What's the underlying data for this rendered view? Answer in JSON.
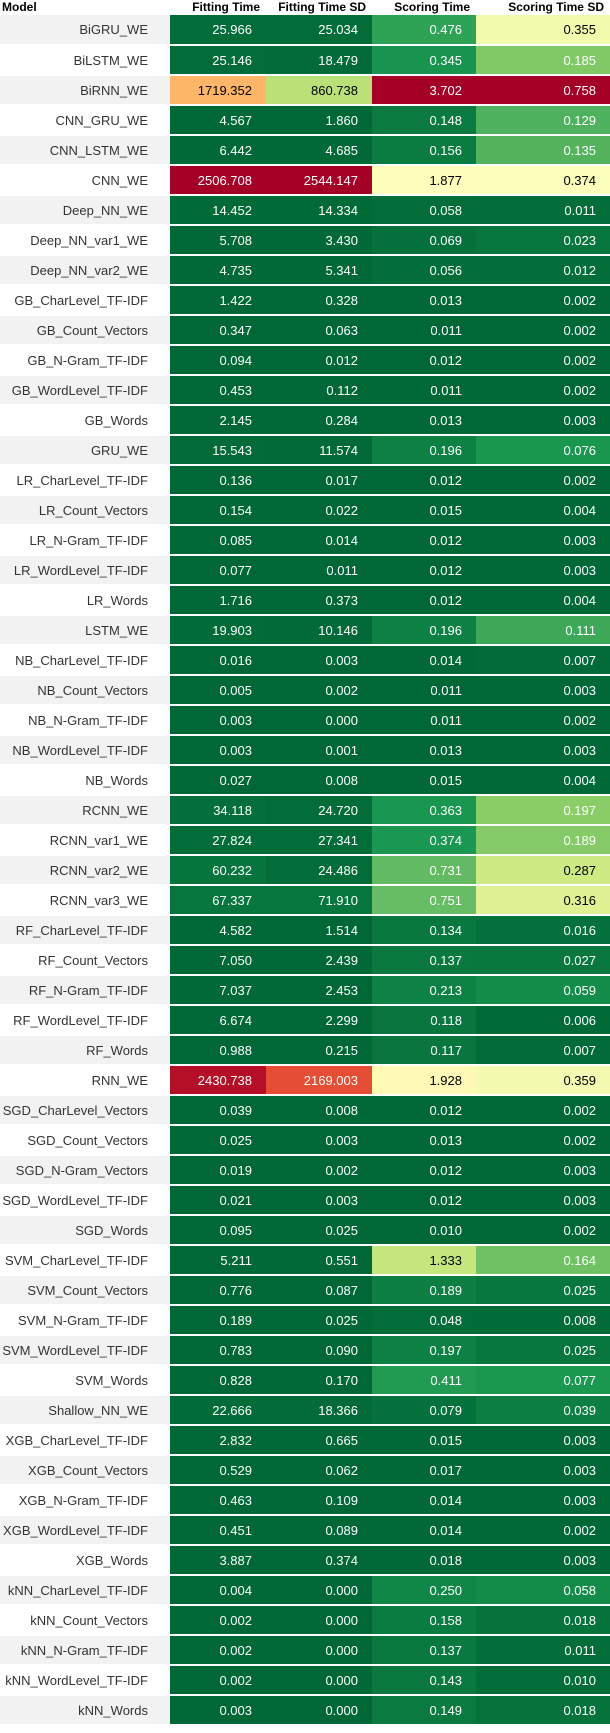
{
  "chart_data": {
    "type": "table",
    "columns": [
      "Model",
      "Fitting Time",
      "Fitting Time SD",
      "Scoring Time",
      "Scoring Time SD"
    ],
    "rows": [
      [
        "BiGRU_WE",
        "25.966",
        "25.034",
        "0.476",
        "0.355"
      ],
      [
        "BiLSTM_WE",
        "25.146",
        "18.479",
        "0.345",
        "0.185"
      ],
      [
        "BiRNN_WE",
        "1719.352",
        "860.738",
        "3.702",
        "0.758"
      ],
      [
        "CNN_GRU_WE",
        "4.567",
        "1.860",
        "0.148",
        "0.129"
      ],
      [
        "CNN_LSTM_WE",
        "6.442",
        "4.685",
        "0.156",
        "0.135"
      ],
      [
        "CNN_WE",
        "2506.708",
        "2544.147",
        "1.877",
        "0.374"
      ],
      [
        "Deep_NN_WE",
        "14.452",
        "14.334",
        "0.058",
        "0.011"
      ],
      [
        "Deep_NN_var1_WE",
        "5.708",
        "3.430",
        "0.069",
        "0.023"
      ],
      [
        "Deep_NN_var2_WE",
        "4.735",
        "5.341",
        "0.056",
        "0.012"
      ],
      [
        "GB_CharLevel_TF-IDF",
        "1.422",
        "0.328",
        "0.013",
        "0.002"
      ],
      [
        "GB_Count_Vectors",
        "0.347",
        "0.063",
        "0.011",
        "0.002"
      ],
      [
        "GB_N-Gram_TF-IDF",
        "0.094",
        "0.012",
        "0.012",
        "0.002"
      ],
      [
        "GB_WordLevel_TF-IDF",
        "0.453",
        "0.112",
        "0.011",
        "0.002"
      ],
      [
        "GB_Words",
        "2.145",
        "0.284",
        "0.013",
        "0.003"
      ],
      [
        "GRU_WE",
        "15.543",
        "11.574",
        "0.196",
        "0.076"
      ],
      [
        "LR_CharLevel_TF-IDF",
        "0.136",
        "0.017",
        "0.012",
        "0.002"
      ],
      [
        "LR_Count_Vectors",
        "0.154",
        "0.022",
        "0.015",
        "0.004"
      ],
      [
        "LR_N-Gram_TF-IDF",
        "0.085",
        "0.014",
        "0.012",
        "0.003"
      ],
      [
        "LR_WordLevel_TF-IDF",
        "0.077",
        "0.011",
        "0.012",
        "0.003"
      ],
      [
        "LR_Words",
        "1.716",
        "0.373",
        "0.012",
        "0.004"
      ],
      [
        "LSTM_WE",
        "19.903",
        "10.146",
        "0.196",
        "0.111"
      ],
      [
        "NB_CharLevel_TF-IDF",
        "0.016",
        "0.003",
        "0.014",
        "0.007"
      ],
      [
        "NB_Count_Vectors",
        "0.005",
        "0.002",
        "0.011",
        "0.003"
      ],
      [
        "NB_N-Gram_TF-IDF",
        "0.003",
        "0.000",
        "0.011",
        "0.002"
      ],
      [
        "NB_WordLevel_TF-IDF",
        "0.003",
        "0.001",
        "0.013",
        "0.003"
      ],
      [
        "NB_Words",
        "0.027",
        "0.008",
        "0.015",
        "0.004"
      ],
      [
        "RCNN_WE",
        "34.118",
        "24.720",
        "0.363",
        "0.197"
      ],
      [
        "RCNN_var1_WE",
        "27.824",
        "27.341",
        "0.374",
        "0.189"
      ],
      [
        "RCNN_var2_WE",
        "60.232",
        "24.486",
        "0.731",
        "0.287"
      ],
      [
        "RCNN_var3_WE",
        "67.337",
        "71.910",
        "0.751",
        "0.316"
      ],
      [
        "RF_CharLevel_TF-IDF",
        "4.582",
        "1.514",
        "0.134",
        "0.016"
      ],
      [
        "RF_Count_Vectors",
        "7.050",
        "2.439",
        "0.137",
        "0.027"
      ],
      [
        "RF_N-Gram_TF-IDF",
        "7.037",
        "2.453",
        "0.213",
        "0.059"
      ],
      [
        "RF_WordLevel_TF-IDF",
        "6.674",
        "2.299",
        "0.118",
        "0.006"
      ],
      [
        "RF_Words",
        "0.988",
        "0.215",
        "0.117",
        "0.007"
      ],
      [
        "RNN_WE",
        "2430.738",
        "2169.003",
        "1.928",
        "0.359"
      ],
      [
        "SGD_CharLevel_Vectors",
        "0.039",
        "0.008",
        "0.012",
        "0.002"
      ],
      [
        "SGD_Count_Vectors",
        "0.025",
        "0.003",
        "0.013",
        "0.002"
      ],
      [
        "SGD_N-Gram_Vectors",
        "0.019",
        "0.002",
        "0.012",
        "0.003"
      ],
      [
        "SGD_WordLevel_TF-IDF",
        "0.021",
        "0.003",
        "0.012",
        "0.003"
      ],
      [
        "SGD_Words",
        "0.095",
        "0.025",
        "0.010",
        "0.002"
      ],
      [
        "SVM_CharLevel_TF-IDF",
        "5.211",
        "0.551",
        "1.333",
        "0.164"
      ],
      [
        "SVM_Count_Vectors",
        "0.776",
        "0.087",
        "0.189",
        "0.025"
      ],
      [
        "SVM_N-Gram_TF-IDF",
        "0.189",
        "0.025",
        "0.048",
        "0.008"
      ],
      [
        "SVM_WordLevel_TF-IDF",
        "0.783",
        "0.090",
        "0.197",
        "0.025"
      ],
      [
        "SVM_Words",
        "0.828",
        "0.170",
        "0.411",
        "0.077"
      ],
      [
        "Shallow_NN_WE",
        "22.666",
        "18.366",
        "0.079",
        "0.039"
      ],
      [
        "XGB_CharLevel_TF-IDF",
        "2.832",
        "0.665",
        "0.015",
        "0.003"
      ],
      [
        "XGB_Count_Vectors",
        "0.529",
        "0.062",
        "0.017",
        "0.003"
      ],
      [
        "XGB_N-Gram_TF-IDF",
        "0.463",
        "0.109",
        "0.014",
        "0.003"
      ],
      [
        "XGB_WordLevel_TF-IDF",
        "0.451",
        "0.089",
        "0.014",
        "0.002"
      ],
      [
        "XGB_Words",
        "3.887",
        "0.374",
        "0.018",
        "0.003"
      ],
      [
        "kNN_CharLevel_TF-IDF",
        "0.004",
        "0.000",
        "0.250",
        "0.058"
      ],
      [
        "kNN_Count_Vectors",
        "0.002",
        "0.000",
        "0.158",
        "0.018"
      ],
      [
        "kNN_N-Gram_TF-IDF",
        "0.002",
        "0.000",
        "0.137",
        "0.011"
      ],
      [
        "kNN_WordLevel_TF-IDF",
        "0.002",
        "0.000",
        "0.143",
        "0.010"
      ],
      [
        "kNN_Words",
        "0.003",
        "0.000",
        "0.149",
        "0.018"
      ]
    ],
    "colormap": [
      "#006837",
      "#1a9850",
      "#66bd63",
      "#a6d96a",
      "#d9ef8b",
      "#ffffbf",
      "#fee08b",
      "#fdae61",
      "#f46d43",
      "#d73027",
      "#a50026"
    ]
  }
}
